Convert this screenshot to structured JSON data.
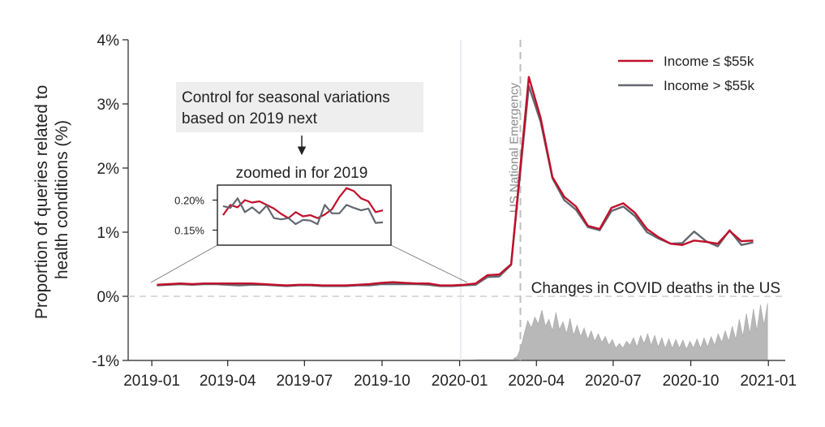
{
  "chart_data": {
    "type": "line",
    "ylabel": "Proportion of queries related to health conditions (%)",
    "yticks": [
      "4%",
      "3%",
      "2%",
      "1%",
      "0%",
      "-1%"
    ],
    "ylim": [
      -1,
      4
    ],
    "xticks": [
      "2019-01",
      "2019-04",
      "2019-07",
      "2019-10",
      "2020-01",
      "2020-04",
      "2020-07",
      "2020-10",
      "2021-01"
    ],
    "xlim": [
      "2019-01",
      "2021-01"
    ],
    "legend_position": "top-right",
    "colors": {
      "low_income": "#c0102a",
      "high_income": "#636770",
      "deaths_fill": "#b8b8b8",
      "annotation_bg": "#eeeeee"
    },
    "series": [
      {
        "name": "Income ≤ $55k",
        "x": [
          "2019-01-07",
          "2019-01-21",
          "2019-02-04",
          "2019-02-18",
          "2019-03-04",
          "2019-03-18",
          "2019-04-01",
          "2019-04-15",
          "2019-04-29",
          "2019-05-13",
          "2019-05-27",
          "2019-06-10",
          "2019-06-24",
          "2019-07-08",
          "2019-07-22",
          "2019-08-05",
          "2019-08-19",
          "2019-09-02",
          "2019-09-16",
          "2019-09-30",
          "2019-10-14",
          "2019-10-28",
          "2019-11-11",
          "2019-11-25",
          "2019-12-09",
          "2019-12-23",
          "2020-01-06",
          "2020-01-20",
          "2020-02-03",
          "2020-02-17",
          "2020-03-02",
          "2020-03-23",
          "2020-04-06",
          "2020-04-20",
          "2020-05-04",
          "2020-05-18",
          "2020-06-01",
          "2020-06-15",
          "2020-06-29",
          "2020-07-13",
          "2020-07-27",
          "2020-08-10",
          "2020-08-24",
          "2020-09-07",
          "2020-09-21",
          "2020-10-05",
          "2020-10-19",
          "2020-11-02",
          "2020-11-16",
          "2020-11-30",
          "2020-12-14"
        ],
        "values": [
          0.18,
          0.19,
          0.2,
          0.19,
          0.2,
          0.2,
          0.2,
          0.2,
          0.2,
          0.19,
          0.18,
          0.17,
          0.18,
          0.18,
          0.17,
          0.17,
          0.17,
          0.18,
          0.19,
          0.21,
          0.22,
          0.21,
          0.2,
          0.2,
          0.17,
          0.17,
          0.18,
          0.2,
          0.33,
          0.34,
          0.5,
          3.42,
          2.78,
          1.86,
          1.55,
          1.4,
          1.1,
          1.05,
          1.38,
          1.45,
          1.3,
          1.05,
          0.92,
          0.82,
          0.8,
          0.87,
          0.85,
          0.82,
          1.02,
          0.86,
          0.87
        ]
      },
      {
        "name": "Income > $55k",
        "x": [
          "2019-01-07",
          "2019-01-21",
          "2019-02-04",
          "2019-02-18",
          "2019-03-04",
          "2019-03-18",
          "2019-04-01",
          "2019-04-15",
          "2019-04-29",
          "2019-05-13",
          "2019-05-27",
          "2019-06-10",
          "2019-06-24",
          "2019-07-08",
          "2019-07-22",
          "2019-08-05",
          "2019-08-19",
          "2019-09-02",
          "2019-09-16",
          "2019-09-30",
          "2019-10-14",
          "2019-10-28",
          "2019-11-11",
          "2019-11-25",
          "2019-12-09",
          "2019-12-23",
          "2020-01-06",
          "2020-01-20",
          "2020-02-03",
          "2020-02-17",
          "2020-03-02",
          "2020-03-23",
          "2020-04-06",
          "2020-04-20",
          "2020-05-04",
          "2020-05-18",
          "2020-06-01",
          "2020-06-15",
          "2020-06-29",
          "2020-07-13",
          "2020-07-27",
          "2020-08-10",
          "2020-08-24",
          "2020-09-07",
          "2020-09-21",
          "2020-10-05",
          "2020-10-19",
          "2020-11-02",
          "2020-11-16",
          "2020-11-30",
          "2020-12-14"
        ],
        "values": [
          0.17,
          0.18,
          0.19,
          0.18,
          0.19,
          0.19,
          0.18,
          0.17,
          0.18,
          0.18,
          0.17,
          0.16,
          0.17,
          0.17,
          0.16,
          0.16,
          0.16,
          0.17,
          0.17,
          0.19,
          0.19,
          0.19,
          0.19,
          0.18,
          0.16,
          0.16,
          0.17,
          0.18,
          0.3,
          0.31,
          0.49,
          3.28,
          2.72,
          1.84,
          1.5,
          1.35,
          1.08,
          1.03,
          1.33,
          1.4,
          1.25,
          1.0,
          0.9,
          0.82,
          0.83,
          1.01,
          0.86,
          0.78,
          1.03,
          0.8,
          0.84
        ]
      }
    ],
    "inset": {
      "title": "zoomed in for 2019",
      "yticks": [
        "0.20%",
        "0.15%"
      ],
      "ylim": [
        0.125,
        0.225
      ],
      "low_income": [
        0.175,
        0.192,
        0.188,
        0.2,
        0.196,
        0.198,
        0.192,
        0.186,
        0.177,
        0.17,
        0.18,
        0.173,
        0.175,
        0.17,
        0.176,
        0.185,
        0.205,
        0.22,
        0.215,
        0.203,
        0.198,
        0.18,
        0.183
      ],
      "high_income": [
        0.19,
        0.187,
        0.203,
        0.18,
        0.188,
        0.178,
        0.191,
        0.17,
        0.168,
        0.17,
        0.16,
        0.167,
        0.166,
        0.16,
        0.192,
        0.178,
        0.178,
        0.192,
        0.187,
        0.183,
        0.186,
        0.162,
        0.163
      ]
    },
    "annotations": {
      "seasonal_note": [
        "Control for seasonal variations",
        "based on 2019 next"
      ],
      "arrow": "↓",
      "emergency_label": "US National Emergency",
      "emergency_date": "2020-03-13",
      "covid_label": "Changes in COVID deaths in the US"
    },
    "covid_deaths_relative": [
      0.02,
      0.05,
      0.2,
      0.45,
      0.68,
      0.55,
      0.74,
      0.62,
      0.86,
      0.58,
      0.7,
      0.5,
      0.82,
      0.52,
      0.66,
      0.45,
      0.72,
      0.42,
      0.6,
      0.4,
      0.55,
      0.35,
      0.5,
      0.32,
      0.45,
      0.3,
      0.4,
      0.25,
      0.35,
      0.2,
      0.28,
      0.2,
      0.32,
      0.25,
      0.38,
      0.22,
      0.42,
      0.28,
      0.45,
      0.25,
      0.42,
      0.22,
      0.38,
      0.2,
      0.36,
      0.2,
      0.35,
      0.2,
      0.34,
      0.18,
      0.32,
      0.2,
      0.36,
      0.2,
      0.38,
      0.22,
      0.4,
      0.25,
      0.45,
      0.3,
      0.5,
      0.32,
      0.58,
      0.35,
      0.7,
      0.4,
      0.8,
      0.45,
      0.88,
      0.5,
      0.95,
      0.6,
      0.98
    ]
  }
}
